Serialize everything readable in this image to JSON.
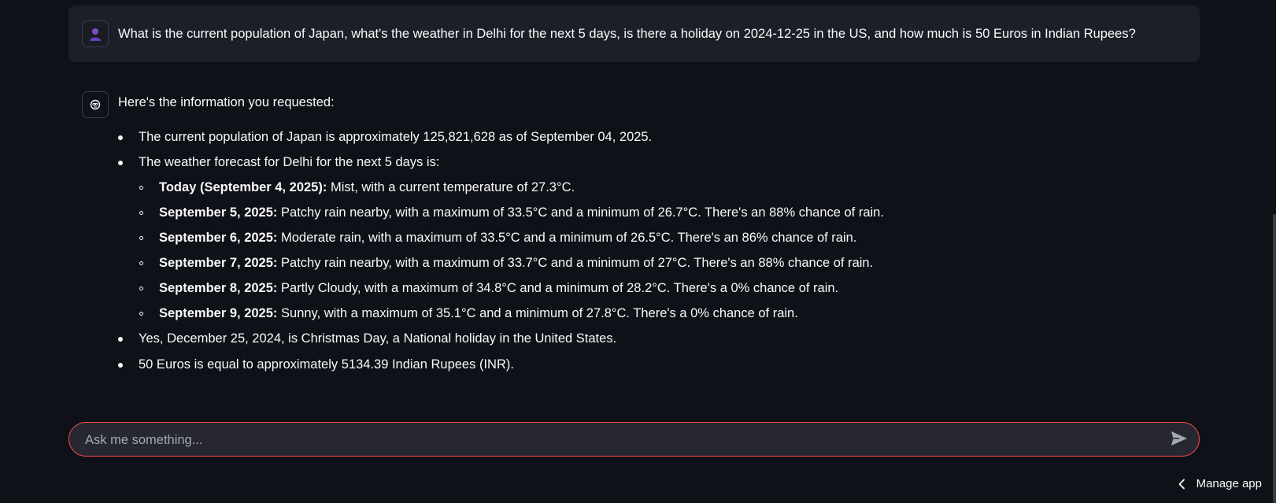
{
  "user_message": {
    "text": "What is the current population of Japan, what's the weather in Delhi for the next 5 days, is there a holiday on 2024-12-25 in the US, and how much is 50 Euros in Indian Rupees?"
  },
  "assistant_message": {
    "intro": "Here's the information you requested:",
    "population": "The current population of Japan is approximately 125,821,628 as of September 04, 2025.",
    "weather_header": "The weather forecast for Delhi for the next 5 days is:",
    "forecast": [
      {
        "label": "Today (September 4, 2025):",
        "text": " Mist, with a current temperature of 27.3°C."
      },
      {
        "label": "September 5, 2025:",
        "text": " Patchy rain nearby, with a maximum of 33.5°C and a minimum of 26.7°C. There's an 88% chance of rain."
      },
      {
        "label": "September 6, 2025:",
        "text": " Moderate rain, with a maximum of 33.5°C and a minimum of 26.5°C. There's an 86% chance of rain."
      },
      {
        "label": "September 7, 2025:",
        "text": " Patchy rain nearby, with a maximum of 33.7°C and a minimum of 27°C. There's an 88% chance of rain."
      },
      {
        "label": "September 8, 2025:",
        "text": " Partly Cloudy, with a maximum of 34.8°C and a minimum of 28.2°C. There's a 0% chance of rain."
      },
      {
        "label": "September 9, 2025:",
        "text": " Sunny, with a maximum of 35.1°C and a minimum of 27.8°C. There's a 0% chance of rain."
      }
    ],
    "holiday": "Yes, December 25, 2024, is Christmas Day, a National holiday in the United States.",
    "currency": "50 Euros is equal to approximately 5134.39 Indian Rupees (INR)."
  },
  "chat_input": {
    "placeholder": "Ask me something...",
    "value": ""
  },
  "footer": {
    "manage_label": "Manage app"
  },
  "icons": {
    "user_avatar": "user-icon",
    "bot_avatar": "robot-icon",
    "send": "send-icon",
    "chevron": "chevron-left-icon"
  },
  "colors": {
    "background": "#0e1117",
    "user_bubble": "#1c1f27",
    "input_bg": "#262730",
    "input_border": "#ff4b4b",
    "avatar_user": "#8b5cf6"
  }
}
